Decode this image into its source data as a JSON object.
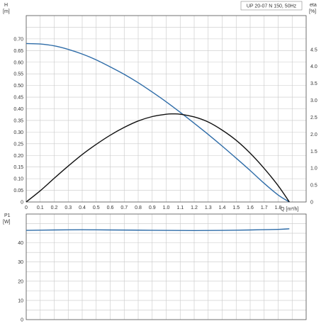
{
  "chart_data": {
    "type": "line",
    "title": "UP 20-07 N 150, 50Hz",
    "top_panel": {
      "xlabel": "Q [m³/h]",
      "ylabel_left": "H",
      "ylabel_left_unit": "[m]",
      "ylabel_right": "eta",
      "ylabel_right_unit": "[%]",
      "xlim": [
        0,
        2.0
      ],
      "ylim_left": [
        0,
        0.8
      ],
      "ylim_right": [
        0,
        5.5
      ],
      "x_ticks": [
        "0",
        "0.1",
        "0.2",
        "0.3",
        "0.4",
        "0.5",
        "0.6",
        "0.7",
        "0.8",
        "0.9",
        "1.0",
        "1.1",
        "1.2",
        "1.3",
        "1.4",
        "1.5",
        "1.6",
        "1.7",
        "1.8"
      ],
      "y_ticks_left": [
        "0",
        "0.05",
        "0.10",
        "0.15",
        "0.20",
        "0.25",
        "0.30",
        "0.35",
        "0.40",
        "0.45",
        "0.50",
        "0.55",
        "0.60",
        "0.65",
        "0.70"
      ],
      "y_ticks_right": [
        "0",
        "0.5",
        "1.0",
        "1.5",
        "2.0",
        "2.5",
        "3.0",
        "3.5",
        "4.0",
        "4.5"
      ],
      "grid": true,
      "series": [
        {
          "axis": "left",
          "color": "#2e6ca8",
          "x": [
            0,
            0.1,
            0.2,
            0.3,
            0.4,
            0.5,
            0.6,
            0.7,
            0.8,
            0.9,
            1.0,
            1.1,
            1.2,
            1.3,
            1.4,
            1.5,
            1.6,
            1.7,
            1.8,
            1.88
          ],
          "y": [
            0.68,
            0.678,
            0.67,
            0.655,
            0.635,
            0.61,
            0.58,
            0.548,
            0.512,
            0.472,
            0.43,
            0.385,
            0.338,
            0.29,
            0.24,
            0.188,
            0.135,
            0.08,
            0.03,
            0
          ]
        },
        {
          "axis": "right",
          "color": "#111111",
          "x": [
            0,
            0.1,
            0.2,
            0.3,
            0.4,
            0.5,
            0.6,
            0.7,
            0.8,
            0.9,
            1.0,
            1.05,
            1.1,
            1.2,
            1.3,
            1.4,
            1.5,
            1.6,
            1.7,
            1.8,
            1.88
          ],
          "y": [
            0,
            0.33,
            0.7,
            1.06,
            1.4,
            1.7,
            1.97,
            2.2,
            2.39,
            2.52,
            2.59,
            2.6,
            2.59,
            2.51,
            2.36,
            2.12,
            1.82,
            1.44,
            0.99,
            0.48,
            0
          ]
        }
      ]
    },
    "bottom_panel": {
      "ylabel": "P1",
      "ylabel_unit": "[W]",
      "xlim": [
        0,
        2.0
      ],
      "ylim": [
        0,
        55
      ],
      "y_ticks": [
        "0",
        "10",
        "20",
        "30",
        "40"
      ],
      "grid": true,
      "series": [
        {
          "color": "#2e6ca8",
          "x": [
            0,
            0.2,
            0.4,
            0.6,
            0.8,
            1.0,
            1.2,
            1.4,
            1.6,
            1.8,
            1.88
          ],
          "y": [
            46.5,
            46.7,
            46.8,
            46.7,
            46.6,
            46.5,
            46.4,
            46.5,
            46.7,
            47.0,
            47.3
          ]
        }
      ]
    }
  }
}
